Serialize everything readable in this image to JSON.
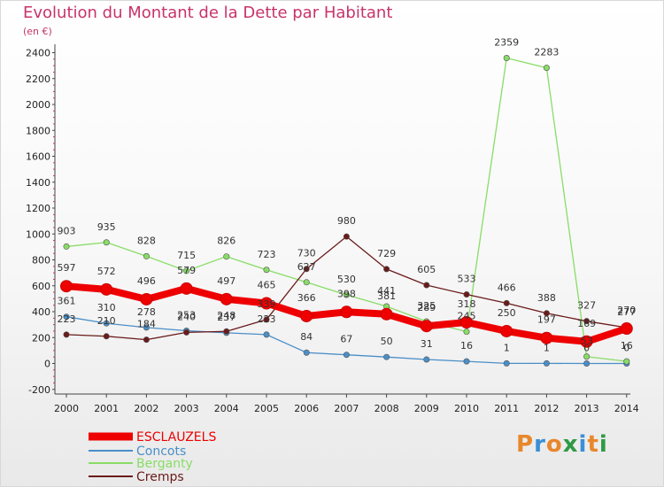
{
  "title": "Evolution du Montant de la Dette par Habitant",
  "subtitle": "(en €)",
  "logo": {
    "text": "Proxiti",
    "colors": [
      "#e8872b",
      "#3a8fd6",
      "#e8872b",
      "#2f9a45",
      "#3a8fd6",
      "#e8872b",
      "#2f9a45"
    ]
  },
  "chart_data": {
    "type": "line",
    "x": [
      "2000",
      "2001",
      "2002",
      "2003",
      "2004",
      "2005",
      "2006",
      "2007",
      "2008",
      "2009",
      "2010",
      "2011",
      "2012",
      "2013",
      "2014"
    ],
    "ylim": [
      -200,
      2400
    ],
    "yticks": [
      "-200",
      "0",
      "200",
      "400",
      "600",
      "800",
      "1000",
      "1200",
      "1400",
      "1600",
      "1800",
      "2000",
      "2200",
      "2400"
    ],
    "xlabel": "",
    "ylabel": "",
    "grid": false,
    "legend_position": "bottom-left",
    "series": [
      {
        "name": "ESCLAUZELS",
        "color": "#ee0000",
        "values": [
          597,
          572,
          496,
          579,
          497,
          465,
          366,
          398,
          381,
          289,
          318,
          250,
          197,
          169,
          270
        ]
      },
      {
        "name": "Concots",
        "color": "#4a8fc8",
        "values": [
          361,
          310,
          278,
          253,
          237,
          223,
          84,
          67,
          50,
          31,
          16,
          1,
          1,
          0,
          0
        ]
      },
      {
        "name": "Berganty",
        "color": "#88dd66",
        "values": [
          903,
          935,
          828,
          715,
          826,
          723,
          627,
          530,
          441,
          325,
          245,
          2359,
          2283,
          53,
          16
        ]
      },
      {
        "name": "Cremps",
        "color": "#6b1a1a",
        "values": [
          223,
          210,
          184,
          240,
          248,
          339,
          730,
          980,
          729,
          605,
          533,
          466,
          388,
          327,
          277
        ]
      }
    ]
  }
}
